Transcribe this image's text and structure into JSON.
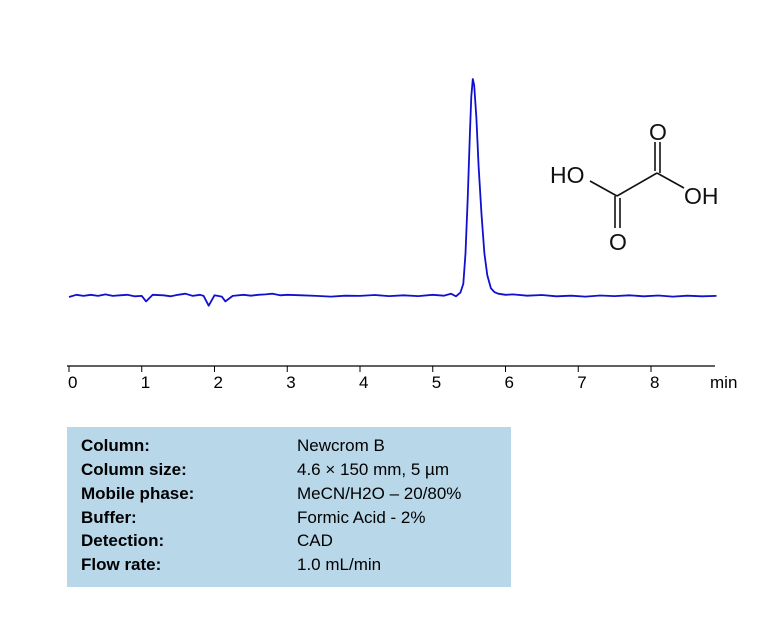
{
  "chart_data": {
    "type": "line",
    "title": "",
    "xlabel": "min",
    "ylabel": "",
    "xlim": [
      0,
      8.9
    ],
    "x_ticks": [
      "0",
      "1",
      "2",
      "3",
      "4",
      "5",
      "6",
      "7",
      "8"
    ],
    "grid": false,
    "y_axis_shown": false,
    "line_color": "#1010d0",
    "series": [
      {
        "points": [
          [
            0.0,
            0
          ],
          [
            0.1,
            1
          ],
          [
            0.2,
            0.5
          ],
          [
            0.3,
            1
          ],
          [
            0.4,
            0.5
          ],
          [
            0.5,
            1.2
          ],
          [
            0.6,
            0.5
          ],
          [
            0.7,
            0.8
          ],
          [
            0.8,
            1
          ],
          [
            0.9,
            0.3
          ],
          [
            1.0,
            0.5
          ],
          [
            1.06,
            -2
          ],
          [
            1.15,
            1
          ],
          [
            1.3,
            0.8
          ],
          [
            1.4,
            0.3
          ],
          [
            1.5,
            1
          ],
          [
            1.6,
            1.5
          ],
          [
            1.7,
            0.5
          ],
          [
            1.8,
            1
          ],
          [
            1.85,
            0.5
          ],
          [
            1.92,
            -4
          ],
          [
            2.0,
            0.8
          ],
          [
            2.1,
            0.2
          ],
          [
            2.15,
            -2
          ],
          [
            2.25,
            0.5
          ],
          [
            2.4,
            1
          ],
          [
            2.5,
            0.6
          ],
          [
            2.6,
            1
          ],
          [
            2.7,
            1.2
          ],
          [
            2.8,
            1.5
          ],
          [
            2.9,
            0.8
          ],
          [
            3.0,
            1
          ],
          [
            3.2,
            0.8
          ],
          [
            3.4,
            0.5
          ],
          [
            3.6,
            0.2
          ],
          [
            3.8,
            0.6
          ],
          [
            4.0,
            0.5
          ],
          [
            4.2,
            0.9
          ],
          [
            4.4,
            0.4
          ],
          [
            4.6,
            0.8
          ],
          [
            4.8,
            0.4
          ],
          [
            5.0,
            1
          ],
          [
            5.15,
            0.6
          ],
          [
            5.25,
            1.5
          ],
          [
            5.32,
            0.3
          ],
          [
            5.38,
            2
          ],
          [
            5.42,
            6
          ],
          [
            5.45,
            20
          ],
          [
            5.48,
            45
          ],
          [
            5.51,
            75
          ],
          [
            5.53,
            92
          ],
          [
            5.55,
            100
          ],
          [
            5.57,
            97
          ],
          [
            5.6,
            82
          ],
          [
            5.63,
            60
          ],
          [
            5.67,
            38
          ],
          [
            5.71,
            20
          ],
          [
            5.75,
            10
          ],
          [
            5.8,
            4
          ],
          [
            5.85,
            2.2
          ],
          [
            5.9,
            1.5
          ],
          [
            6.0,
            1
          ],
          [
            6.1,
            1.2
          ],
          [
            6.3,
            0.6
          ],
          [
            6.5,
            0.9
          ],
          [
            6.7,
            0.3
          ],
          [
            6.9,
            0.6
          ],
          [
            7.1,
            0.2
          ],
          [
            7.3,
            0.7
          ],
          [
            7.5,
            0.4
          ],
          [
            7.7,
            0.8
          ],
          [
            7.9,
            0.3
          ],
          [
            8.1,
            0.7
          ],
          [
            8.3,
            0.2
          ],
          [
            8.5,
            0.6
          ],
          [
            8.7,
            0.3
          ],
          [
            8.9,
            0.5
          ]
        ]
      }
    ],
    "peaks": [
      {
        "compound": "Oxalic acid",
        "retention_time": 5.55
      }
    ]
  },
  "structure": {
    "labels": {
      "ho_left": "HO",
      "oh_right": "OH",
      "o_top": "O",
      "o_bottom": "O"
    }
  },
  "conditions": [
    {
      "label": "Column:",
      "value": "Newcrom B"
    },
    {
      "label": "Column size:",
      "value": "4.6 × 150 mm, 5 µm"
    },
    {
      "label": "Mobile phase:",
      "value": "MeCN/H2O – 20/80%"
    },
    {
      "label": "Buffer:",
      "value": "Formic Acid - 2%"
    },
    {
      "label": "Detection:",
      "value": "CAD"
    },
    {
      "label": "Flow rate:",
      "value": "1.0 mL/min"
    }
  ]
}
